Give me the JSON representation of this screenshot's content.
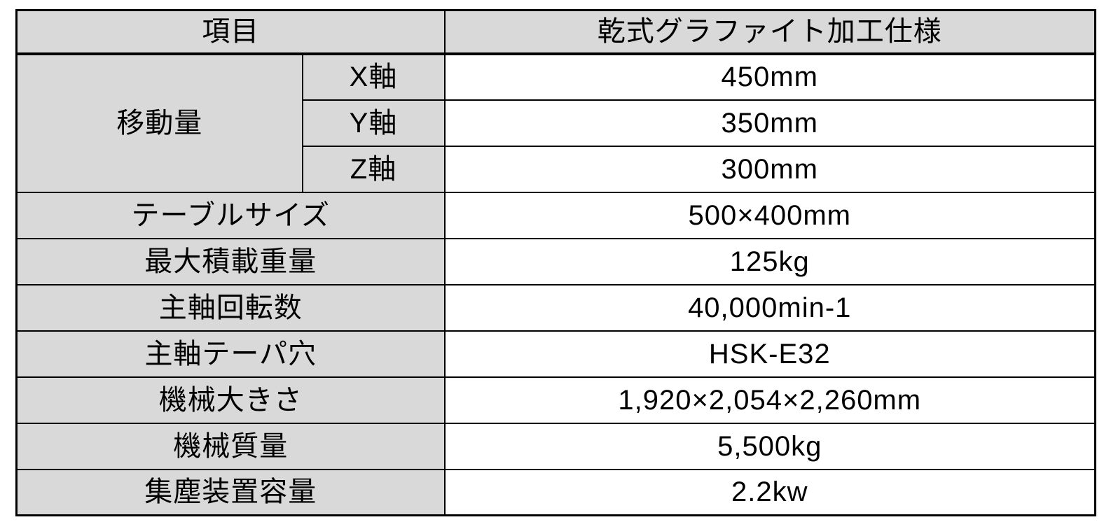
{
  "table": {
    "header": {
      "item_label": "項目",
      "spec_label": "乾式グラファイト加工仕様"
    },
    "travel": {
      "label": "移動量",
      "axes": [
        {
          "axis": "X軸",
          "value": "450mm"
        },
        {
          "axis": "Y軸",
          "value": "350mm"
        },
        {
          "axis": "Z軸",
          "value": "300mm"
        }
      ]
    },
    "rows": [
      {
        "label": "テーブルサイズ",
        "value": "500×400mm"
      },
      {
        "label": "最大積載重量",
        "value": "125kg"
      },
      {
        "label": "主軸回転数",
        "value": "40,000min-1"
      },
      {
        "label": "主軸テーパ穴",
        "value": "HSK-E32"
      },
      {
        "label": "機械大きさ",
        "value": "1,920×2,054×2,260mm"
      },
      {
        "label": "機械質量",
        "value": "5,500kg"
      },
      {
        "label": "集塵装置容量",
        "value": "2.2kw"
      }
    ],
    "colors": {
      "header_bg": "#d9d9d9",
      "label_bg": "#d9d9d9",
      "value_bg": "#ffffff",
      "border": "#000000",
      "text": "#000000"
    }
  }
}
